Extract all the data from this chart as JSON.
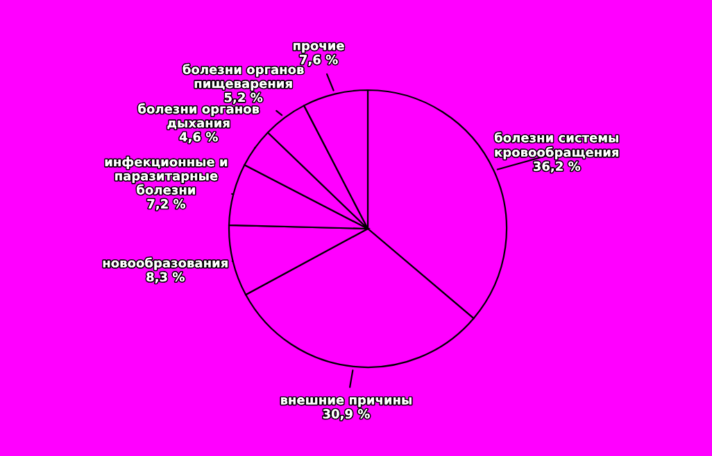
{
  "chart_data": {
    "type": "pie",
    "categories": [
      "болезни системы\nкровообращения",
      "внешние причины",
      "новообразования",
      "инфекционные и\nпаразитарные\nболезни",
      "болезни органов\nдыхания",
      "болезни органов\nпищеварения",
      "прочие"
    ],
    "values": [
      36.2,
      30.9,
      8.3,
      7.2,
      4.6,
      5.2,
      7.6
    ],
    "value_labels": [
      "36,2 %",
      "30,9 %",
      "8,3 %",
      "7,2 %",
      "4,6 %",
      "5,2 %",
      "7,6 %"
    ],
    "colors": [
      "#ff00ff",
      "#ff00ff",
      "#ff00ff",
      "#ff00ff",
      "#ff00ff",
      "#ff00ff",
      "#ff00ff"
    ]
  }
}
